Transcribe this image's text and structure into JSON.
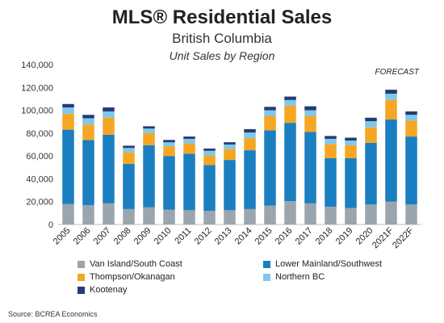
{
  "header": {
    "title": "MLS® Residential Sales",
    "subtitle": "British Columbia",
    "subtitle2": "Unit Sales by Region"
  },
  "source": "Source: BCREA Economics",
  "forecast_label": "FORECAST",
  "chart_data": {
    "type": "bar",
    "stacked": true,
    "title": "MLS® Residential Sales",
    "subtitle": "Unit Sales by Region",
    "categories": [
      "2005",
      "2006",
      "2007",
      "2008",
      "2009",
      "2010",
      "2011",
      "2012",
      "2013",
      "2014",
      "2015",
      "2016",
      "2017",
      "2018",
      "2019",
      "2020",
      "2021F",
      "2022F"
    ],
    "ylim": [
      0,
      140000
    ],
    "yticks": [
      0,
      20000,
      40000,
      60000,
      80000,
      100000,
      120000,
      140000
    ],
    "ytick_labels": [
      "0",
      "20,000",
      "40,000",
      "60,000",
      "80,000",
      "100,000",
      "120,000",
      "140,000"
    ],
    "grid": false,
    "legend_position": "bottom",
    "annotation": "FORECAST",
    "series": [
      {
        "name": "Van Island/South Coast",
        "color": "#9aa5ad",
        "values": [
          18000,
          17000,
          18500,
          13500,
          15000,
          13000,
          12500,
          12000,
          12500,
          13500,
          16500,
          20500,
          18500,
          15500,
          14500,
          17500,
          20000,
          17500
        ]
      },
      {
        "name": "Lower Mainland/Southwest",
        "color": "#1a7fc1",
        "values": [
          65000,
          57000,
          60000,
          39500,
          54500,
          47000,
          49500,
          40000,
          44000,
          51500,
          66000,
          68500,
          62500,
          42500,
          43500,
          54000,
          72000,
          59500
        ]
      },
      {
        "name": "Thompson/Okanagan",
        "color": "#f5a623",
        "values": [
          14000,
          13500,
          15000,
          10000,
          10500,
          8500,
          9000,
          8500,
          9500,
          10500,
          12500,
          15000,
          14000,
          12500,
          11500,
          13500,
          17000,
          14000
        ]
      },
      {
        "name": "Northern BC",
        "color": "#7fc8ea",
        "values": [
          5500,
          5500,
          5500,
          4000,
          4000,
          3500,
          4000,
          4000,
          4000,
          5000,
          5000,
          5000,
          5000,
          4500,
          4000,
          5500,
          5500,
          5000
        ]
      },
      {
        "name": "Kootenay",
        "color": "#263a73",
        "values": [
          3000,
          3000,
          3500,
          2000,
          2000,
          2000,
          2000,
          2000,
          2000,
          3000,
          3000,
          3000,
          3500,
          2500,
          2500,
          3000,
          3500,
          3000
        ]
      }
    ]
  }
}
